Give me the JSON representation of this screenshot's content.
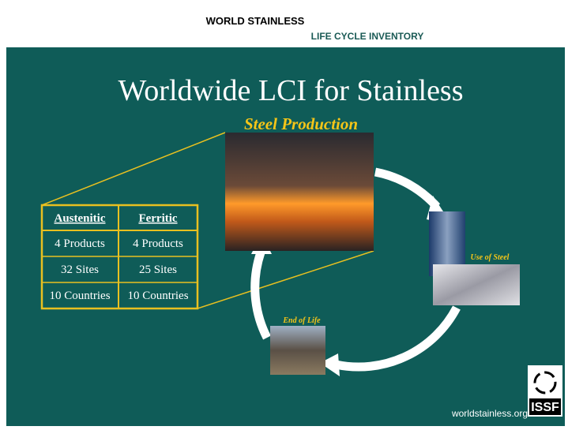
{
  "header": {
    "line1": "WORLD STAINLESS",
    "line2": "LIFE CYCLE INVENTORY"
  },
  "slide": {
    "title": "Worldwide LCI for Stainless",
    "subtitle": "Steel Production",
    "labels": {
      "use": "Use of Steel",
      "end": "End of Life"
    },
    "table": {
      "headers": [
        "Austenitic",
        "Ferritic"
      ],
      "rows": [
        [
          "4 Products",
          "4 Products"
        ],
        [
          "32 Sites",
          "25 Sites"
        ],
        [
          "10 Countries",
          "10 Countries"
        ]
      ]
    },
    "footer": "worldstainless.org",
    "logo": "ISSF"
  }
}
